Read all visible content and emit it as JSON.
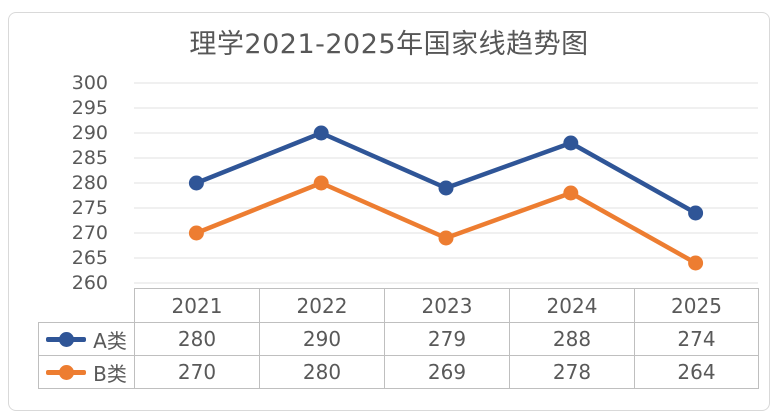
{
  "title": "理学2021-2025年国家线趋势图",
  "chart_data": {
    "type": "line",
    "title": "理学2021-2025年国家线趋势图",
    "categories": [
      "2021",
      "2022",
      "2023",
      "2024",
      "2025"
    ],
    "series": [
      {
        "name": "A类",
        "color": "#2F5597",
        "values": [
          280,
          290,
          279,
          288,
          274
        ]
      },
      {
        "name": "B类",
        "color": "#ED7D31",
        "values": [
          270,
          280,
          269,
          278,
          264
        ]
      }
    ],
    "ylim": [
      260,
      300
    ],
    "yticks": [
      300,
      295,
      290,
      285,
      280,
      275,
      270,
      265,
      260
    ],
    "grid": "horizontal",
    "legend_position": "table-left",
    "data_table": true,
    "marker": "circle"
  },
  "colors": {
    "series_a": "#2F5597",
    "series_b": "#ED7D31",
    "gridline": "#E8E8E8",
    "table_border": "#BFBFBF",
    "card_border": "#D9D9D9",
    "text": "#595959"
  }
}
